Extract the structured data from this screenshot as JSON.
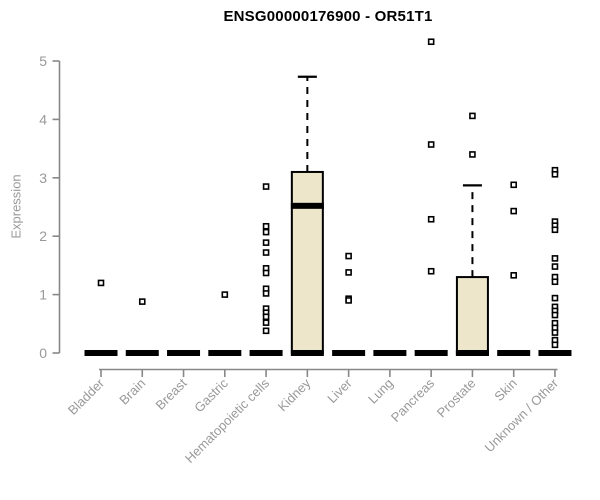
{
  "chart_data": {
    "type": "boxplot",
    "title": "ENSG00000176900 - OR51T1",
    "ylabel": "Expression",
    "xlabel": "",
    "ylim": [
      0,
      5
    ],
    "yticks": [
      0,
      1,
      2,
      3,
      4,
      5
    ],
    "grid": "off",
    "legend": "none",
    "categories": [
      "Bladder",
      "Brain",
      "Breast",
      "Gastric",
      "Hematopoietic cells",
      "Kidney",
      "Liver",
      "Lung",
      "Pancreas",
      "Prostate",
      "Skin",
      "Unknown / Other"
    ],
    "series": [
      {
        "name": "Bladder",
        "q1": 0,
        "median": 0,
        "q3": 0,
        "whisker_low": 0,
        "whisker_high": 0,
        "outliers": [
          1.2
        ]
      },
      {
        "name": "Brain",
        "q1": 0,
        "median": 0,
        "q3": 0,
        "whisker_low": 0,
        "whisker_high": 0,
        "outliers": [
          0.88
        ]
      },
      {
        "name": "Breast",
        "q1": 0,
        "median": 0,
        "q3": 0,
        "whisker_low": 0,
        "whisker_high": 0,
        "outliers": []
      },
      {
        "name": "Gastric",
        "q1": 0,
        "median": 0,
        "q3": 0,
        "whisker_low": 0,
        "whisker_high": 0,
        "outliers": [
          1.0
        ]
      },
      {
        "name": "Hematopoietic cells",
        "q1": 0,
        "median": 0,
        "q3": 0,
        "whisker_low": 0,
        "whisker_high": 0,
        "outliers": [
          2.85,
          2.17,
          2.07,
          1.89,
          1.72,
          1.45,
          1.37,
          1.1,
          1.02,
          0.76,
          0.69,
          0.62,
          0.52,
          0.38
        ]
      },
      {
        "name": "Kidney",
        "q1": 0,
        "median": 2.52,
        "q3": 3.1,
        "whisker_low": 0,
        "whisker_high": 4.73,
        "outliers": []
      },
      {
        "name": "Liver",
        "q1": 0,
        "median": 0,
        "q3": 0,
        "whisker_low": 0,
        "whisker_high": 0,
        "outliers": [
          1.66,
          1.38,
          0.93,
          0.9
        ]
      },
      {
        "name": "Lung",
        "q1": 0,
        "median": 0,
        "q3": 0,
        "whisker_low": 0,
        "whisker_high": 0,
        "outliers": []
      },
      {
        "name": "Pancreas",
        "q1": 0,
        "median": 0,
        "q3": 0,
        "whisker_low": 0,
        "whisker_high": 0,
        "outliers": [
          5.33,
          3.57,
          2.29,
          1.4
        ]
      },
      {
        "name": "Prostate",
        "q1": 0,
        "median": 0,
        "q3": 1.3,
        "whisker_low": 0,
        "whisker_high": 2.87,
        "outliers": [
          4.06,
          3.4
        ]
      },
      {
        "name": "Skin",
        "q1": 0,
        "median": 0,
        "q3": 0,
        "whisker_low": 0,
        "whisker_high": 0,
        "outliers": [
          2.88,
          2.43,
          1.33
        ]
      },
      {
        "name": "Unknown / Other",
        "q1": 0,
        "median": 0,
        "q3": 0,
        "whisker_low": 0,
        "whisker_high": 0,
        "outliers": [
          3.13,
          3.06,
          2.25,
          2.18,
          2.11,
          1.62,
          1.48,
          1.3,
          1.22,
          0.94,
          0.79,
          0.72,
          0.65,
          0.51,
          0.43,
          0.35,
          0.22,
          0.14
        ]
      }
    ],
    "colors": {
      "box_fill": "#ede6cb",
      "box_stroke": "#000000",
      "median": "#000000",
      "axis": "#888888",
      "tick_labels": "#999999",
      "title": "#000000",
      "outlier_fill": "#ffffff",
      "background": "#ffffff"
    }
  }
}
